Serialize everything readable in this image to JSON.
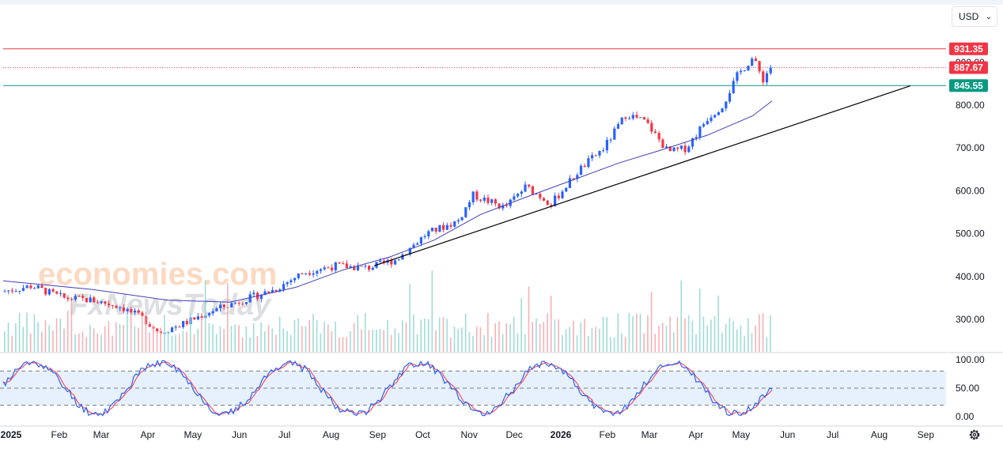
{
  "currency_selector": {
    "label": "USD",
    "chevron_icon": "chevron-down-icon"
  },
  "settings_icon": "gear-icon",
  "watermarks": {
    "primary": "economies.com",
    "secondary": "FxNewsToday"
  },
  "price_badges": {
    "resistance": {
      "label": "931.35",
      "value": 931.35,
      "color": "#f23645"
    },
    "last_price": {
      "label": "887.67",
      "value": 887.67,
      "color": "#f23645"
    },
    "support": {
      "label": "845.55",
      "value": 845.55,
      "color": "#089981"
    },
    "hidden_level": {
      "label": "900.00",
      "value": 900
    }
  },
  "colors": {
    "up": "#2962ff",
    "down": "#f23645",
    "ma": "#3f3fb8",
    "trendline": "#000000",
    "stoch_k": "#2962ff",
    "stoch_d": "#f7525f",
    "osc_band": "#e3effd"
  },
  "time_axis": [
    "2025",
    "Feb",
    "Mar",
    "Apr",
    "May",
    "Jun",
    "Jul",
    "Aug",
    "Sep",
    "Oct",
    "Nov",
    "Dec",
    "2026",
    "Feb",
    "Mar",
    "Apr",
    "May",
    "Jun",
    "Jul",
    "Aug",
    "Sep"
  ],
  "chart_data": {
    "type": "candlestick",
    "x_range": [
      "2025-01",
      "2026-09"
    ],
    "ylim": [
      220,
      955
    ],
    "price_ticks": [
      "800.00",
      "700.00",
      "600.00",
      "500.00",
      "400.00",
      "300.00"
    ],
    "price_tick_values": [
      800,
      700,
      600,
      500,
      400,
      300
    ],
    "close_path": {
      "dates": [
        "2025-01-01",
        "2025-01-20",
        "2025-02-10",
        "2025-03-01",
        "2025-03-20",
        "2025-04-05",
        "2025-04-15",
        "2025-05-01",
        "2025-05-20",
        "2025-06-10",
        "2025-07-01",
        "2025-07-20",
        "2025-08-10",
        "2025-09-01",
        "2025-09-20",
        "2025-10-10",
        "2025-10-31",
        "2025-11-10",
        "2025-12-01",
        "2025-12-15",
        "2026-01-01",
        "2026-01-20",
        "2026-02-05",
        "2026-02-20",
        "2026-03-05",
        "2026-03-20",
        "2026-04-01",
        "2026-04-15",
        "2026-04-25",
        "2026-05-05",
        "2026-05-15",
        "2026-05-22",
        "2026-05-28"
      ],
      "values": [
        365,
        378,
        350,
        345,
        330,
        300,
        270,
        290,
        320,
        345,
        370,
        410,
        425,
        420,
        440,
        500,
        530,
        590,
        560,
        610,
        570,
        650,
        700,
        780,
        760,
        690,
        700,
        770,
        800,
        870,
        910,
        860,
        895
      ]
    },
    "moving_average": {
      "dates": [
        "2025-01-01",
        "2025-03-01",
        "2025-04-20",
        "2025-06-01",
        "2025-07-15",
        "2025-08-15",
        "2025-09-15",
        "2025-10-15",
        "2025-11-15",
        "2025-12-15",
        "2026-01-15",
        "2026-02-15",
        "2026-03-15",
        "2026-04-15",
        "2026-05-15",
        "2026-05-28"
      ],
      "values": [
        390,
        370,
        345,
        340,
        375,
        415,
        445,
        485,
        545,
        585,
        625,
        665,
        695,
        730,
        775,
        810
      ]
    },
    "trendline": {
      "from_date": "2025-09-05",
      "from_value": 425,
      "to_date": "2026-08-28",
      "to_value": 845
    },
    "stochastic": {
      "levels": [
        80,
        50,
        20
      ],
      "ticks": [
        "100.00",
        "50.00",
        "0.00"
      ],
      "tick_values": [
        100,
        50,
        0
      ]
    }
  }
}
